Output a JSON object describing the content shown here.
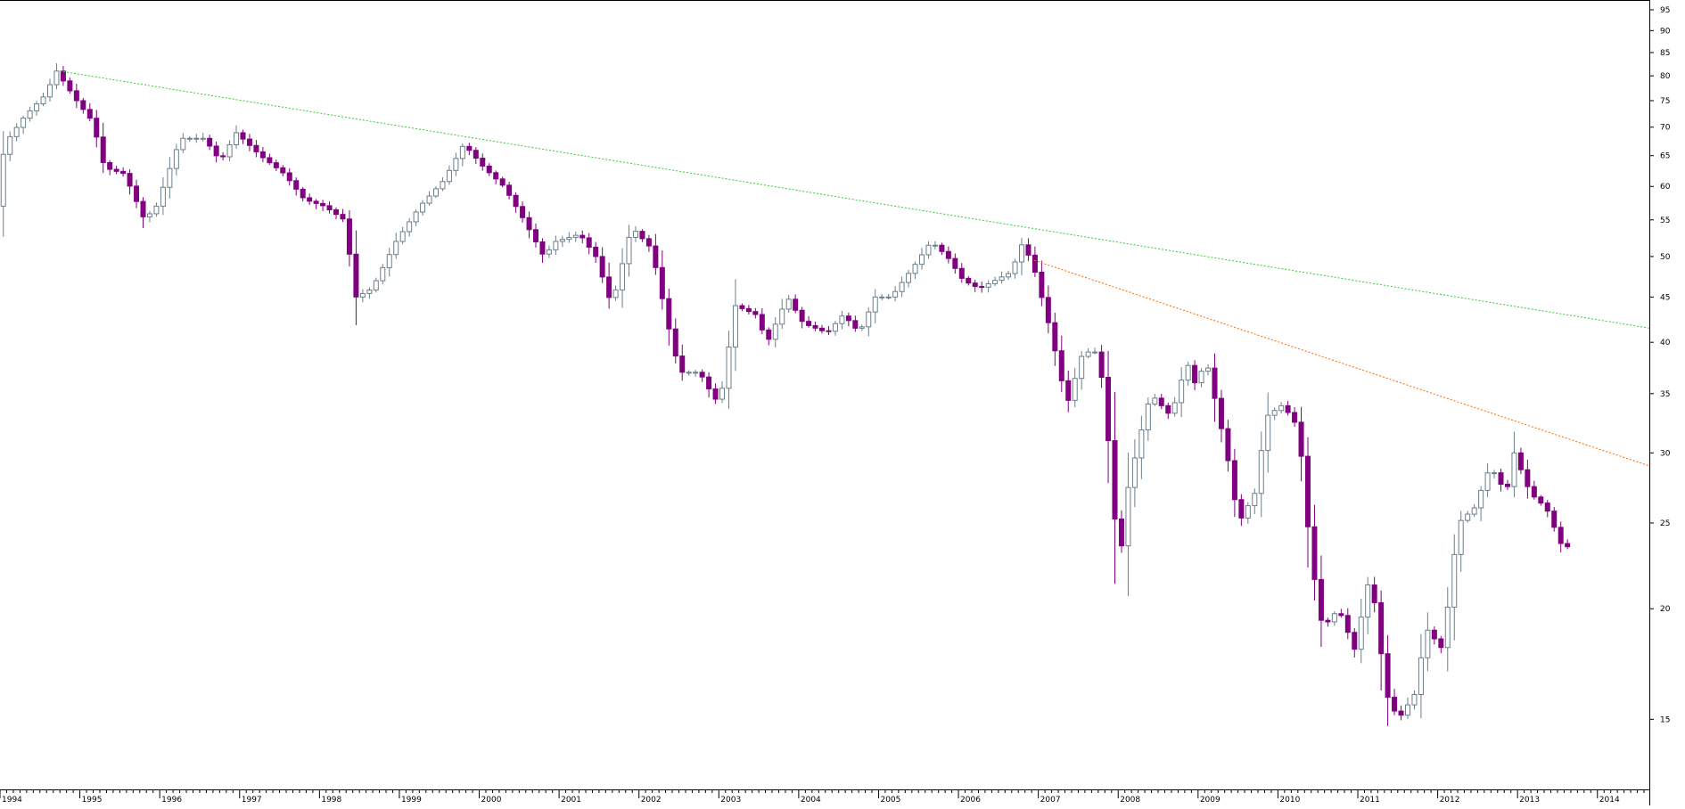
{
  "chart_data": {
    "type": "candlestick",
    "title": "",
    "xlabel": "",
    "ylabel": "",
    "y_scale": "log",
    "ylim": [
      12.5,
      97
    ],
    "y_ticks": [
      15,
      20,
      25,
      30,
      35,
      40,
      45,
      50,
      55,
      60,
      65,
      70,
      75,
      80,
      85,
      90,
      95
    ],
    "x_range": [
      1994.0,
      2014.65
    ],
    "x_tick_labels": [
      "1994",
      "1995",
      "1996",
      "1997",
      "1998",
      "1999",
      "2000",
      "2001",
      "2002",
      "2003",
      "2004",
      "2005",
      "2006",
      "2007",
      "2008",
      "2009",
      "2010",
      "2011",
      "2012",
      "2013",
      "2014"
    ],
    "grid": false,
    "colors": {
      "up": "#ffffff",
      "up_outline": "#6a7f8a",
      "down": "#800080",
      "trend_long": "#33cc33",
      "trend_short": "#ff6600",
      "axis": "#000000"
    },
    "anchors": [
      [
        1994.0,
        57
      ],
      [
        1994.1,
        67
      ],
      [
        1994.35,
        72
      ],
      [
        1994.6,
        76
      ],
      [
        1994.75,
        81
      ],
      [
        1995.0,
        75
      ],
      [
        1995.2,
        71
      ],
      [
        1995.35,
        63
      ],
      [
        1995.6,
        62
      ],
      [
        1995.85,
        55
      ],
      [
        1996.0,
        57
      ],
      [
        1996.3,
        68
      ],
      [
        1996.6,
        68
      ],
      [
        1996.8,
        64
      ],
      [
        1997.0,
        69
      ],
      [
        1997.3,
        65
      ],
      [
        1997.6,
        62
      ],
      [
        1997.85,
        58
      ],
      [
        1998.1,
        57
      ],
      [
        1998.35,
        55
      ],
      [
        1998.5,
        45
      ],
      [
        1998.7,
        46
      ],
      [
        1999.0,
        52
      ],
      [
        1999.3,
        57
      ],
      [
        1999.6,
        61
      ],
      [
        1999.85,
        67
      ],
      [
        2000.1,
        63
      ],
      [
        2000.35,
        60
      ],
      [
        2000.6,
        55
      ],
      [
        2000.85,
        50
      ],
      [
        2001.0,
        52
      ],
      [
        2001.3,
        53
      ],
      [
        2001.5,
        50
      ],
      [
        2001.7,
        44
      ],
      [
        2001.95,
        54
      ],
      [
        2002.2,
        51
      ],
      [
        2002.4,
        42
      ],
      [
        2002.55,
        37
      ],
      [
        2002.8,
        37
      ],
      [
        2002.95,
        35
      ],
      [
        2003.05,
        34
      ],
      [
        2003.25,
        44
      ],
      [
        2003.5,
        43
      ],
      [
        2003.65,
        40
      ],
      [
        2003.9,
        45
      ],
      [
        2004.1,
        42
      ],
      [
        2004.4,
        41
      ],
      [
        2004.6,
        43
      ],
      [
        2004.8,
        41
      ],
      [
        2005.0,
        45
      ],
      [
        2005.2,
        45
      ],
      [
        2005.5,
        49
      ],
      [
        2005.7,
        52
      ],
      [
        2005.9,
        50
      ],
      [
        2006.1,
        47
      ],
      [
        2006.3,
        46
      ],
      [
        2006.5,
        47
      ],
      [
        2006.7,
        48
      ],
      [
        2006.85,
        52
      ],
      [
        2007.0,
        48
      ],
      [
        2007.2,
        41
      ],
      [
        2007.4,
        34
      ],
      [
        2007.6,
        39
      ],
      [
        2007.8,
        39
      ],
      [
        2007.95,
        29
      ],
      [
        2008.05,
        22
      ],
      [
        2008.15,
        27
      ],
      [
        2008.3,
        31
      ],
      [
        2008.45,
        35
      ],
      [
        2008.7,
        33
      ],
      [
        2008.9,
        38
      ],
      [
        2009.0,
        36
      ],
      [
        2009.15,
        38
      ],
      [
        2009.4,
        30
      ],
      [
        2009.55,
        25
      ],
      [
        2009.75,
        27
      ],
      [
        2009.9,
        33
      ],
      [
        2010.1,
        34
      ],
      [
        2010.3,
        32
      ],
      [
        2010.45,
        23
      ],
      [
        2010.6,
        19
      ],
      [
        2010.8,
        20
      ],
      [
        2011.0,
        18
      ],
      [
        2011.2,
        22
      ],
      [
        2011.4,
        16
      ],
      [
        2011.55,
        15
      ],
      [
        2011.75,
        16
      ],
      [
        2011.9,
        19
      ],
      [
        2012.1,
        18
      ],
      [
        2012.3,
        25
      ],
      [
        2012.5,
        26
      ],
      [
        2012.7,
        29
      ],
      [
        2012.9,
        27
      ],
      [
        2013.0,
        30
      ],
      [
        2013.2,
        27
      ],
      [
        2013.4,
        26
      ],
      [
        2013.6,
        23.5
      ]
    ],
    "trend_lines": [
      {
        "color": "trend_long",
        "points": [
          [
            1994.75,
            81
          ],
          [
            2014.65,
            41.5
          ]
        ]
      },
      {
        "color": "trend_short",
        "points": [
          [
            2006.95,
            49.5
          ],
          [
            2014.65,
            29
          ]
        ]
      }
    ]
  }
}
